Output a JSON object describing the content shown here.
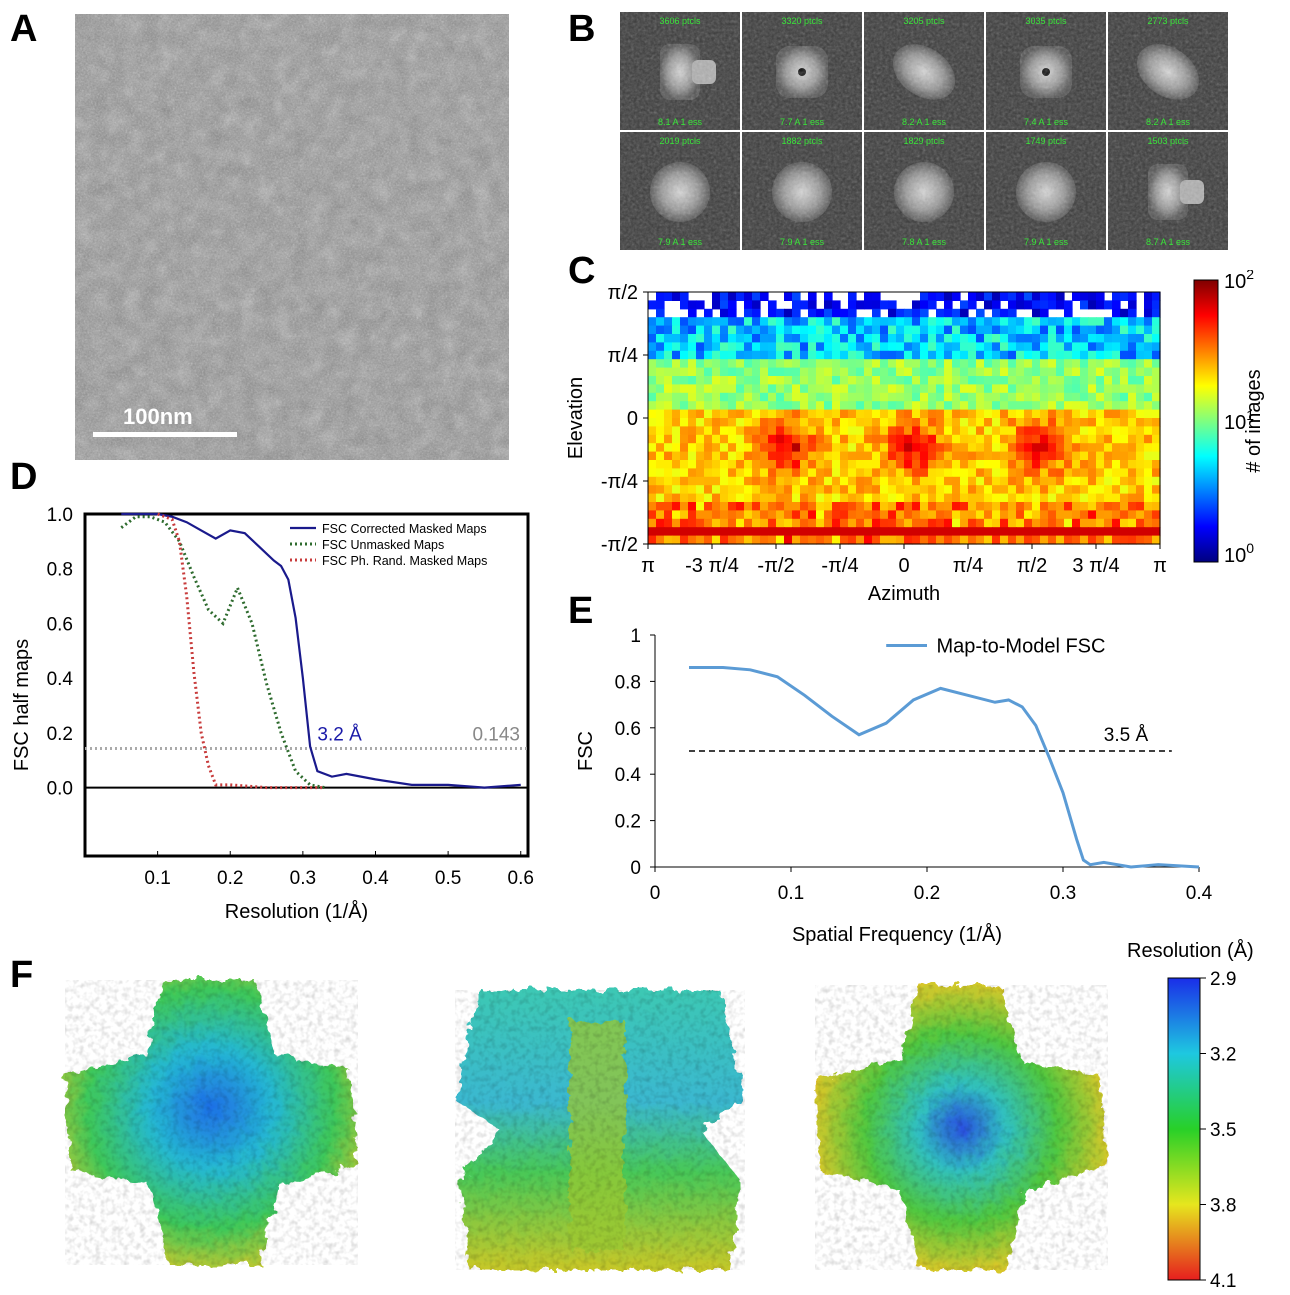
{
  "panel_labels": {
    "a": "A",
    "b": "B",
    "c": "C",
    "d": "D",
    "e": "E",
    "f": "F"
  },
  "micrograph": {
    "scale_bar_label": "100nm",
    "background": "#8f8f8f"
  },
  "class_averages": [
    {
      "count": "3606 ptcls",
      "res": "8.1 A 1 ess",
      "shape": "side"
    },
    {
      "count": "3320 ptcls",
      "res": "7.7 A 1 ess",
      "shape": "top"
    },
    {
      "count": "3205 ptcls",
      "res": "8.2 A 1 ess",
      "shape": "tilt"
    },
    {
      "count": "3035 ptcls",
      "res": "7.4 A 1 ess",
      "shape": "top"
    },
    {
      "count": "2773 ptcls",
      "res": "8.2 A 1 ess",
      "shape": "tilt"
    },
    {
      "count": "2019 ptcls",
      "res": "7.9 A 1 ess",
      "shape": "round"
    },
    {
      "count": "1882 ptcls",
      "res": "7.9 A 1 ess",
      "shape": "round"
    },
    {
      "count": "1829 ptcls",
      "res": "7.8 A 1 ess",
      "shape": "round"
    },
    {
      "count": "1749 ptcls",
      "res": "7.9 A 1 ess",
      "shape": "round"
    },
    {
      "count": "1503 ptcls",
      "res": "8.7 A 1 ess",
      "shape": "side"
    }
  ],
  "class_label_color": "#39e639",
  "angular_dist": {
    "xlabel": "Azimuth",
    "ylabel": "Elevation",
    "xticks": [
      "π",
      "-3 π/4",
      "-π/2",
      "-π/4",
      "0",
      "π/4",
      "π/2",
      "3 π/4",
      "π"
    ],
    "yticks": [
      "π/2",
      "π/4",
      "0",
      "-π/4",
      "-π/2"
    ],
    "colorbar_label": "# of images",
    "colorbar_ticks": {
      "top_base": "10",
      "top_exp": "2",
      "mid_base": "10",
      "mid_exp": "1",
      "bot_base": "10",
      "bot_exp": "0"
    }
  },
  "fsc_half": {
    "ylabel": "FSC half maps",
    "xlabel": "Resolution (1/Å)",
    "xticks": [
      "0.1",
      "0.2",
      "0.3",
      "0.4",
      "0.5",
      "0.6"
    ],
    "yticks": [
      "1.0",
      "0.8",
      "0.6",
      "0.4",
      "0.2",
      "0.0"
    ],
    "legend": [
      "FSC Corrected Masked Maps",
      "FSC Unmasked Maps",
      "FSC Ph. Rand. Masked Maps"
    ],
    "threshold_label": "0.143",
    "resolution_label": "3.2 Å",
    "colors": {
      "corrected": "#1a1a8c",
      "unmasked": "#2e6b2e",
      "phrand": "#c83c3c",
      "threshold": "#aaaaaa",
      "resolution_text": "#1a1aa8"
    }
  },
  "fsc_model": {
    "legend": "Map-to-Model FSC",
    "ylabel": "FSC",
    "xlabel": "Spatial Frequency (1/Å)",
    "xticks": [
      "0",
      "0.1",
      "0.2",
      "0.3",
      "0.4"
    ],
    "yticks": [
      "1",
      "0.8",
      "0.6",
      "0.4",
      "0.2",
      "0"
    ],
    "cutoff_label": "3.5 Å",
    "color": "#5b9bd5"
  },
  "local_res": {
    "colorbar_title": "Resolution (Å)",
    "colorbar_ticks": [
      "2.9",
      "3.2",
      "3.5",
      "3.8",
      "4.1"
    ]
  },
  "chart_data": [
    {
      "type": "line",
      "title": "",
      "xlabel": "Resolution (1/Å)",
      "ylabel": "FSC half maps",
      "xlim": [
        0,
        0.61
      ],
      "ylim": [
        -0.25,
        1.0
      ],
      "series": [
        {
          "name": "FSC Corrected Masked Maps",
          "x": [
            0.05,
            0.08,
            0.1,
            0.12,
            0.14,
            0.16,
            0.18,
            0.2,
            0.22,
            0.24,
            0.26,
            0.27,
            0.28,
            0.29,
            0.3,
            0.31,
            0.32,
            0.34,
            0.36,
            0.4,
            0.45,
            0.5,
            0.55,
            0.6
          ],
          "y": [
            1.0,
            1.0,
            1.0,
            0.99,
            0.97,
            0.94,
            0.91,
            0.94,
            0.93,
            0.88,
            0.83,
            0.81,
            0.76,
            0.62,
            0.4,
            0.15,
            0.06,
            0.04,
            0.05,
            0.03,
            0.01,
            0.01,
            0.0,
            0.01
          ]
        },
        {
          "name": "FSC Unmasked Maps",
          "x": [
            0.05,
            0.07,
            0.09,
            0.11,
            0.13,
            0.15,
            0.17,
            0.19,
            0.21,
            0.23,
            0.25,
            0.27,
            0.29,
            0.31,
            0.33
          ],
          "y": [
            0.95,
            0.99,
            0.99,
            0.97,
            0.9,
            0.77,
            0.65,
            0.6,
            0.73,
            0.6,
            0.38,
            0.2,
            0.06,
            0.01,
            0.0
          ]
        },
        {
          "name": "FSC Ph. Rand. Masked Maps",
          "x": [
            0.1,
            0.12,
            0.13,
            0.14,
            0.15,
            0.16,
            0.17,
            0.18,
            0.2,
            0.25,
            0.3,
            0.33
          ],
          "y": [
            1.0,
            0.98,
            0.9,
            0.7,
            0.42,
            0.2,
            0.08,
            0.01,
            0.01,
            0.0,
            0.0,
            0.0
          ]
        }
      ]
    },
    {
      "type": "line",
      "title": "",
      "xlabel": "Spatial Frequency (1/Å)",
      "ylabel": "FSC",
      "xlim": [
        0,
        0.4
      ],
      "ylim": [
        0,
        1
      ],
      "series": [
        {
          "name": "Map-to-Model FSC",
          "x": [
            0.025,
            0.05,
            0.07,
            0.09,
            0.11,
            0.13,
            0.15,
            0.17,
            0.19,
            0.21,
            0.23,
            0.25,
            0.26,
            0.27,
            0.28,
            0.29,
            0.3,
            0.31,
            0.315,
            0.32,
            0.33,
            0.35,
            0.37,
            0.4
          ],
          "y": [
            0.86,
            0.86,
            0.85,
            0.82,
            0.74,
            0.65,
            0.57,
            0.62,
            0.72,
            0.77,
            0.74,
            0.71,
            0.72,
            0.69,
            0.61,
            0.47,
            0.32,
            0.12,
            0.03,
            0.01,
            0.02,
            0.0,
            0.01,
            0.0
          ]
        }
      ],
      "hline": {
        "y": 0.5,
        "x_start": 0.025,
        "x_end": 0.38
      }
    }
  ]
}
